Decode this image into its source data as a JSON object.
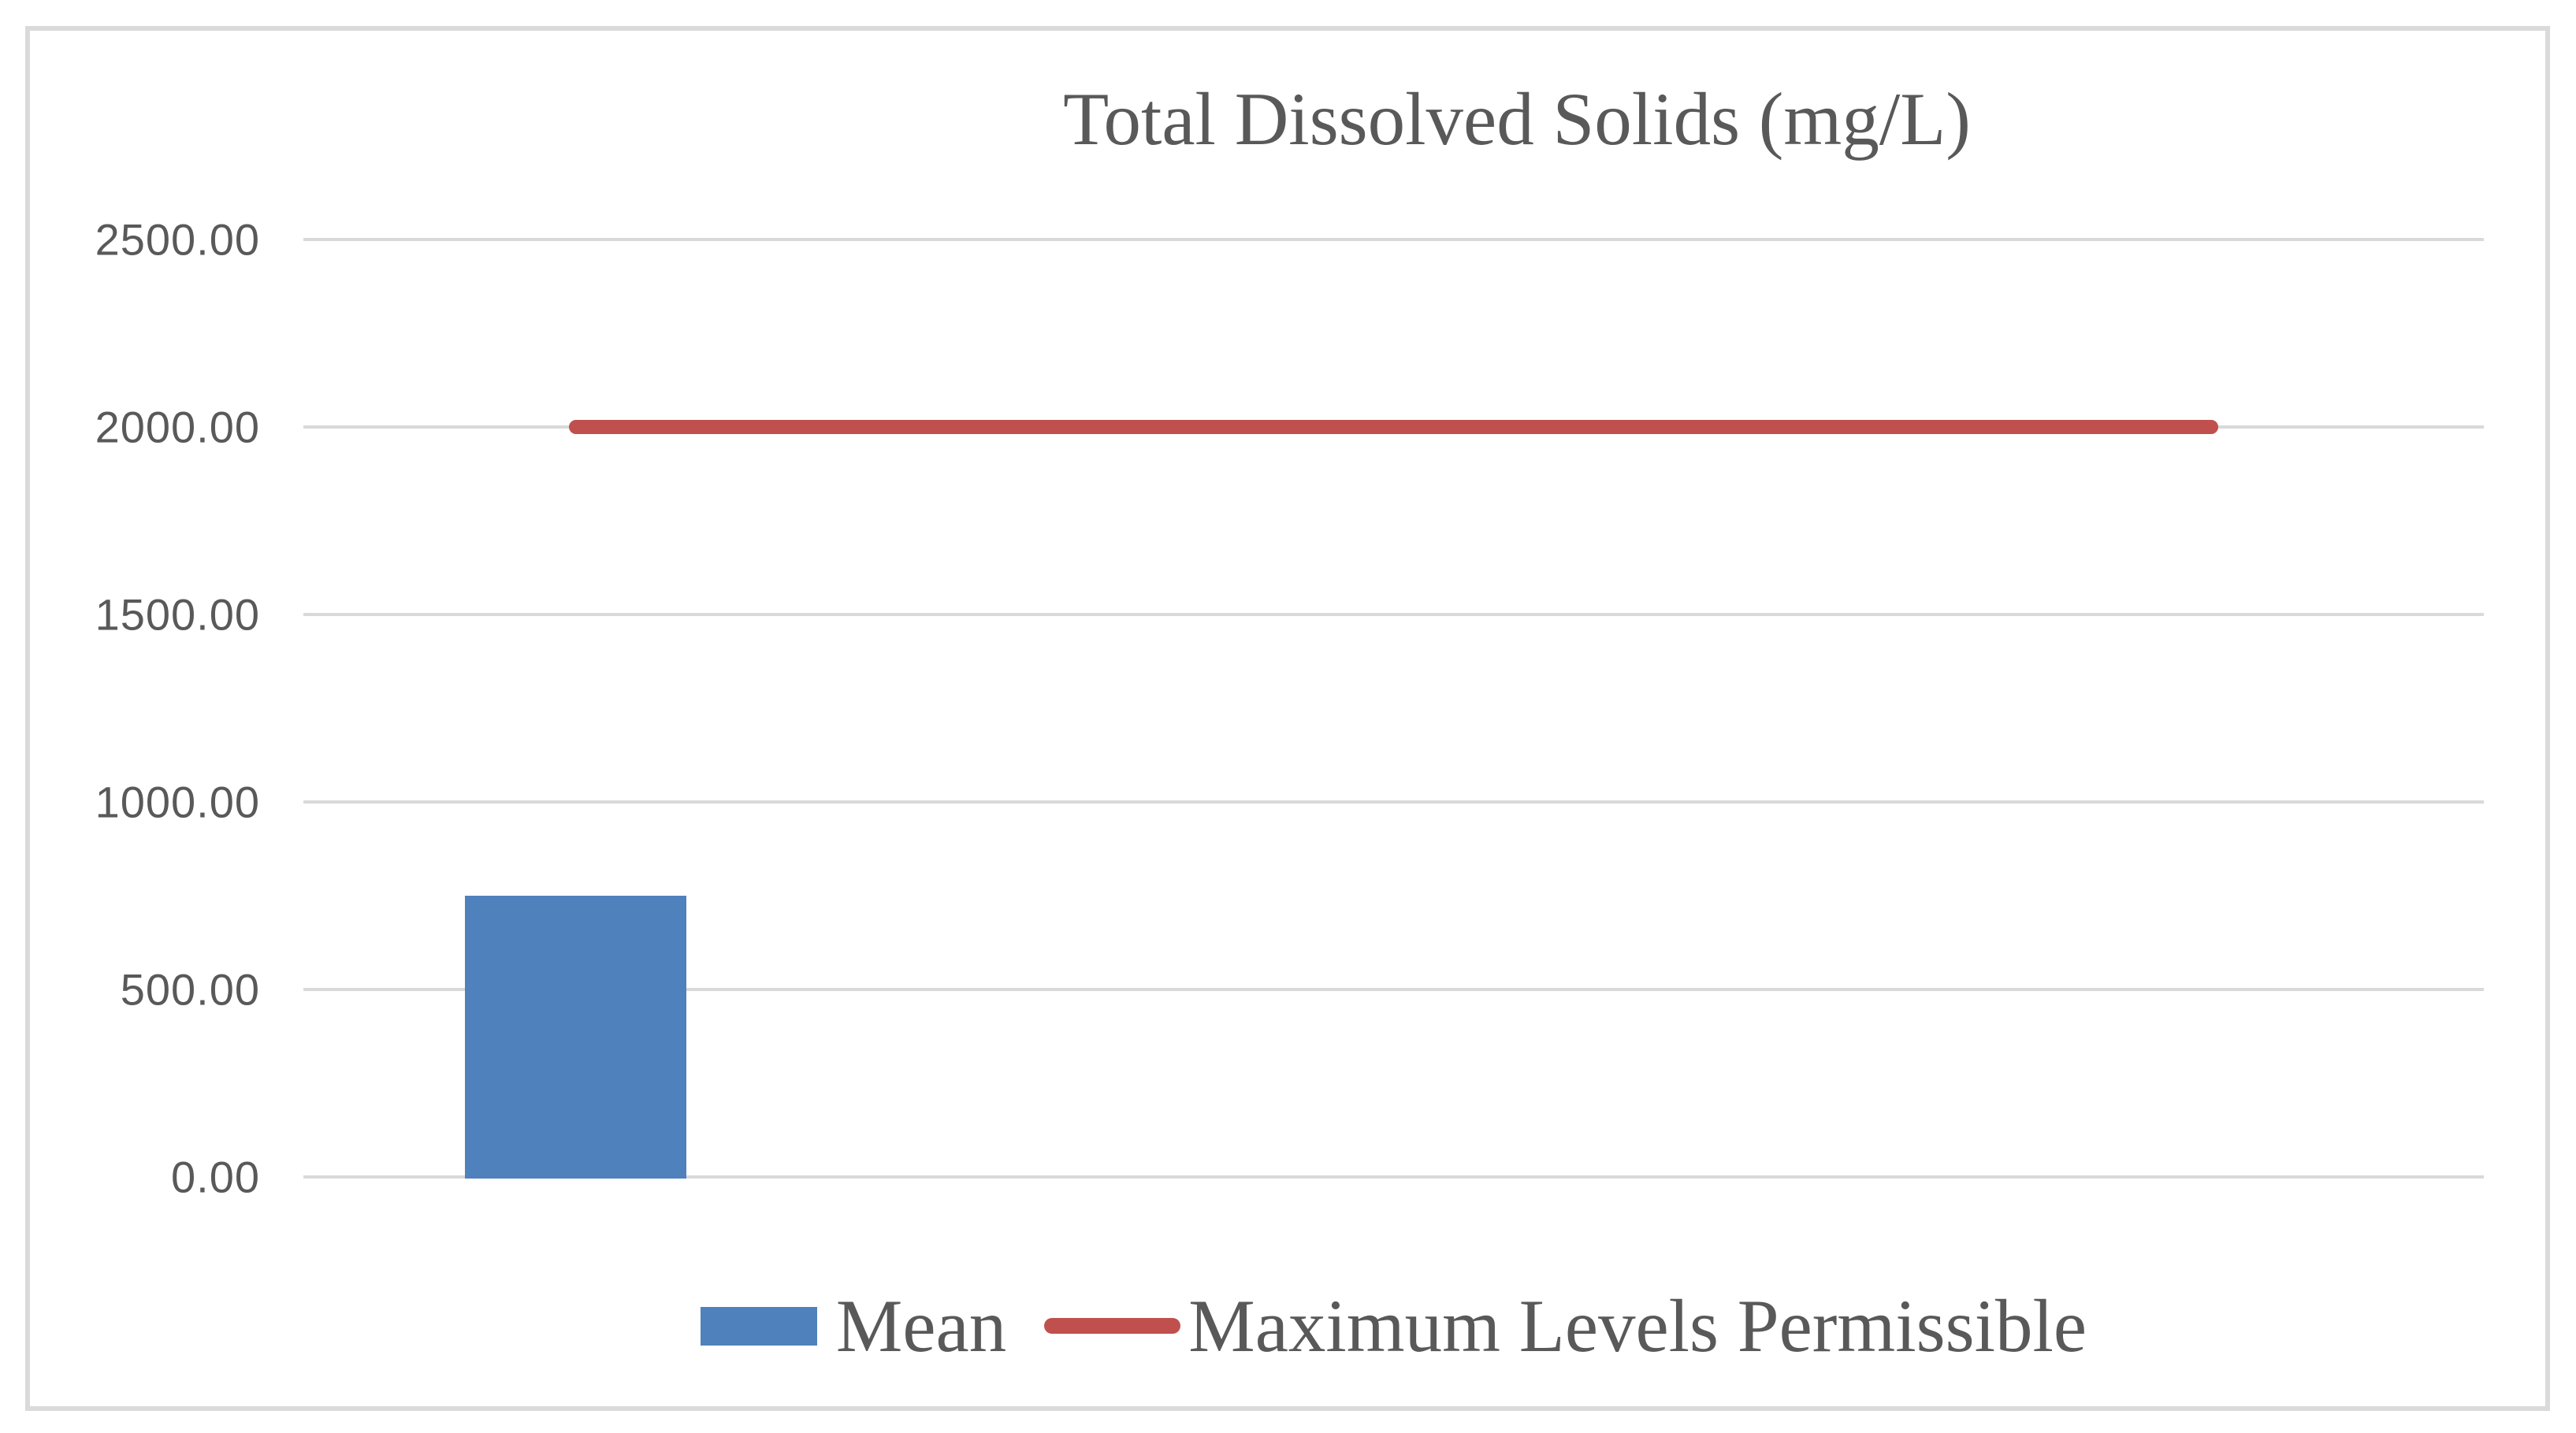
{
  "chart_data": {
    "type": "bar",
    "title": "Total Dissolved Solids (mg/L)",
    "categories": [
      "",
      "",
      "",
      ""
    ],
    "series": [
      {
        "name": "Mean",
        "type": "bar",
        "color": "#4F81BD",
        "values": [
          750
        ]
      },
      {
        "name": "Maximum Levels Permissible",
        "type": "line",
        "color": "#C0504D",
        "values": [
          2000,
          2000,
          2000,
          2000
        ]
      }
    ],
    "ylim": [
      0,
      2500
    ],
    "ytick_step": 500,
    "yticks": [
      "2500.00",
      "2000.00",
      "1500.00",
      "1000.00",
      "500.00",
      "0.00"
    ],
    "grid": true,
    "legend_position": "bottom",
    "colors": {
      "text": "#595959",
      "gridline": "#D9D9D9",
      "frame_border": "#DADADA",
      "background": "#FFFFFF"
    }
  }
}
